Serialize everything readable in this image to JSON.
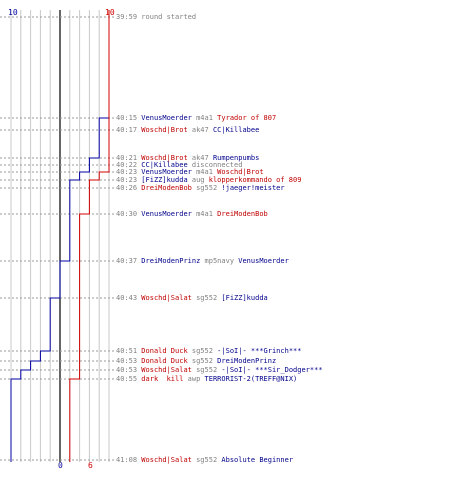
{
  "graph": {
    "blue_score_start": "10",
    "red_score_start": "10",
    "blue_score_end": "0",
    "red_score_end": "6",
    "colors": {
      "blue": "#0000a0",
      "red": "#d00000",
      "grid": "#c8c8c8",
      "axis": "#000000"
    }
  },
  "events": [
    {
      "time": "39:59",
      "parts": [
        {
          "text": "round started",
          "color": "gray"
        }
      ]
    },
    {
      "time": "40:15",
      "parts": [
        {
          "text": "VenusMoerder",
          "color": "blue"
        },
        {
          "text": " m4a1 ",
          "color": "gray"
        },
        {
          "text": "Tyrador of 807",
          "color": "red"
        }
      ]
    },
    {
      "time": "40:17",
      "parts": [
        {
          "text": "Woschd|Brot",
          "color": "red"
        },
        {
          "text": " ak47 ",
          "color": "gray"
        },
        {
          "text": "CC|Killabee",
          "color": "blue"
        }
      ]
    },
    {
      "time": "40:21",
      "parts": [
        {
          "text": "Woschd|Brot",
          "color": "red"
        },
        {
          "text": " ak47 ",
          "color": "gray"
        },
        {
          "text": "Rumpenpumbs",
          "color": "blue"
        }
      ]
    },
    {
      "time": "40:22",
      "parts": [
        {
          "text": "CC|Killabee",
          "color": "blue"
        },
        {
          "text": " disconnected",
          "color": "gray"
        }
      ]
    },
    {
      "time": "40:23",
      "parts": [
        {
          "text": "VenusMoerder",
          "color": "blue"
        },
        {
          "text": " m4a1 ",
          "color": "gray"
        },
        {
          "text": "Woschd|Brot",
          "color": "red"
        }
      ]
    },
    {
      "time": "40:23",
      "parts": [
        {
          "text": "[FiZZ]kudda",
          "color": "blue"
        },
        {
          "text": " aug ",
          "color": "gray"
        },
        {
          "text": "klopperkommando of 809",
          "color": "red"
        }
      ]
    },
    {
      "time": "40:26",
      "parts": [
        {
          "text": "DreiModenBob",
          "color": "red"
        },
        {
          "text": " sg552 ",
          "color": "gray"
        },
        {
          "text": "!jaeger!meister",
          "color": "blue"
        }
      ]
    },
    {
      "time": "40:30",
      "parts": [
        {
          "text": "VenusMoerder",
          "color": "blue"
        },
        {
          "text": " m4a1 ",
          "color": "gray"
        },
        {
          "text": "DreiModenBob",
          "color": "red"
        }
      ]
    },
    {
      "time": "40:37",
      "parts": [
        {
          "text": "DreiModenPrinz",
          "color": "blue"
        },
        {
          "text": " mp5navy ",
          "color": "gray"
        },
        {
          "text": "VenusMoerder",
          "color": "blue"
        }
      ]
    },
    {
      "time": "40:43",
      "parts": [
        {
          "text": "Woschd|Salat",
          "color": "red"
        },
        {
          "text": " sg552 ",
          "color": "gray"
        },
        {
          "text": "[FiZZ]kudda",
          "color": "blue"
        }
      ]
    },
    {
      "time": "40:51",
      "parts": [
        {
          "text": "Donald Duck",
          "color": "red"
        },
        {
          "text": " sg552 ",
          "color": "gray"
        },
        {
          "text": "-|SoI|- ***Grinch***",
          "color": "blue"
        }
      ]
    },
    {
      "time": "40:53",
      "parts": [
        {
          "text": "Donald Duck",
          "color": "red"
        },
        {
          "text": " sg552 ",
          "color": "gray"
        },
        {
          "text": "DreiModenPrinz",
          "color": "blue"
        }
      ]
    },
    {
      "time": "40:53",
      "parts": [
        {
          "text": "Woschd|Salat",
          "color": "red"
        },
        {
          "text": " sg552 ",
          "color": "gray"
        },
        {
          "text": "-|SoI|- ***Sir_Dodger***",
          "color": "blue"
        }
      ]
    },
    {
      "time": "40:55",
      "parts": [
        {
          "text": "dark  kill",
          "color": "red"
        },
        {
          "text": " awp ",
          "color": "gray"
        },
        {
          "text": "TERRORIST-2(TREFF@NIX)",
          "color": "blue"
        }
      ]
    },
    {
      "time": "41:08",
      "parts": [
        {
          "text": "Woschd|Salat",
          "color": "red"
        },
        {
          "text": " sg552 ",
          "color": "gray"
        },
        {
          "text": "Absolute Beginner",
          "color": "blue"
        }
      ]
    }
  ],
  "blue_steps": [
    10,
    9,
    9,
    8,
    8,
    7,
    6,
    6,
    6,
    5,
    4,
    3,
    2,
    1,
    0,
    0
  ],
  "red_steps": [
    10,
    10,
    10,
    10,
    10,
    9,
    8,
    8,
    7,
    7,
    7,
    7,
    7,
    7,
    6,
    6
  ]
}
